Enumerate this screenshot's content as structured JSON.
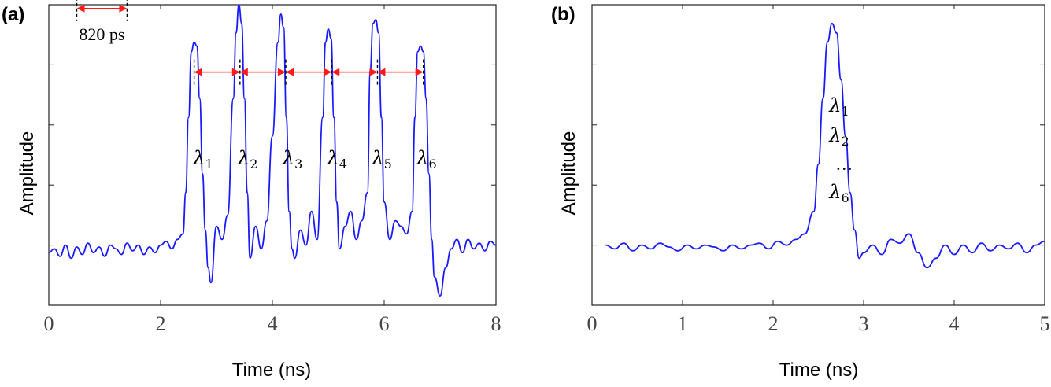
{
  "chart_data": [
    {
      "panel": "(a)",
      "type": "line",
      "xlabel": "Time (ns)",
      "ylabel": "Amplitude",
      "xlim": [
        0,
        8
      ],
      "xticks": [
        "0",
        "2",
        "4",
        "6",
        "8"
      ],
      "ylim": [
        -0.3,
        1.3
      ],
      "series": [
        {
          "color": "#1a1aff",
          "x": [
            0,
            0.1,
            0.2,
            0.3,
            0.4,
            0.5,
            0.6,
            0.7,
            0.8,
            0.9,
            1.0,
            1.1,
            1.2,
            1.3,
            1.4,
            1.5,
            1.6,
            1.7,
            1.8,
            1.9,
            2.0,
            2.1,
            2.2,
            2.3,
            2.4,
            2.45,
            2.5,
            2.55,
            2.6,
            2.65,
            2.7,
            2.75,
            2.8,
            2.85,
            2.9,
            3.0,
            3.1,
            3.2,
            3.3,
            3.35,
            3.4,
            3.45,
            3.5,
            3.55,
            3.6,
            3.7,
            3.8,
            3.9,
            4.0,
            4.1,
            4.15,
            4.2,
            4.25,
            4.3,
            4.35,
            4.4,
            4.5,
            4.6,
            4.7,
            4.8,
            4.9,
            4.95,
            5.0,
            5.05,
            5.1,
            5.15,
            5.2,
            5.3,
            5.4,
            5.5,
            5.6,
            5.7,
            5.75,
            5.8,
            5.85,
            5.9,
            5.95,
            6.0,
            6.1,
            6.2,
            6.3,
            6.4,
            6.5,
            6.55,
            6.6,
            6.65,
            6.7,
            6.75,
            6.8,
            6.85,
            6.9,
            7.0,
            7.1,
            7.2,
            7.3,
            7.4,
            7.5,
            7.6,
            7.7,
            7.8,
            7.9,
            8.0
          ],
          "y": [
            -0.02,
            0.0,
            -0.04,
            0.02,
            -0.05,
            0.01,
            -0.03,
            0.03,
            -0.02,
            0.01,
            -0.04,
            0.02,
            0.0,
            -0.03,
            0.03,
            -0.01,
            0.02,
            -0.03,
            0.01,
            -0.02,
            0.02,
            0.04,
            0.0,
            0.05,
            0.08,
            0.3,
            0.7,
            1.05,
            1.1,
            1.08,
            0.8,
            0.4,
            0.1,
            -0.1,
            -0.18,
            0.12,
            0.05,
            0.18,
            0.8,
            1.15,
            1.3,
            1.2,
            0.8,
            0.3,
            -0.05,
            0.12,
            0.0,
            0.15,
            0.6,
            1.1,
            1.25,
            1.18,
            0.7,
            0.2,
            0.0,
            -0.05,
            0.1,
            0.02,
            0.2,
            0.05,
            0.7,
            1.1,
            1.17,
            1.12,
            0.7,
            0.25,
            0.0,
            0.12,
            0.2,
            0.05,
            0.15,
            0.3,
            0.95,
            1.2,
            1.22,
            1.15,
            0.7,
            0.25,
            0.05,
            0.15,
            0.12,
            0.08,
            0.2,
            0.7,
            1.05,
            1.08,
            1.05,
            0.8,
            0.4,
            0.05,
            -0.15,
            -0.25,
            -0.1,
            0.0,
            0.05,
            -0.02,
            0.05,
            0.0,
            0.03,
            -0.01,
            0.04,
            0.02
          ]
        }
      ],
      "annotations": {
        "pulse_labels": [
          {
            "base": "λ",
            "sub": "1",
            "x": 2.75
          },
          {
            "base": "λ",
            "sub": "2",
            "x": 3.55
          },
          {
            "base": "λ",
            "sub": "3",
            "x": 4.35
          },
          {
            "base": "λ",
            "sub": "4",
            "x": 5.15
          },
          {
            "base": "λ",
            "sub": "5",
            "x": 5.95
          },
          {
            "base": "λ",
            "sub": "6",
            "x": 6.75
          }
        ],
        "label_y": 0.45,
        "spacing_text": "820 ps",
        "spacing_y": 1.0,
        "spacing_peaks_x": [
          2.6,
          3.42,
          4.24,
          5.06,
          5.88,
          6.7
        ],
        "legend_arrow_x": [
          0.5,
          1.4
        ],
        "legend_arrow_y": 1.28
      }
    },
    {
      "panel": "(b)",
      "type": "line",
      "xlabel": "Time (ns)",
      "ylabel": "Amplitude",
      "xlim": [
        0,
        5
      ],
      "xticks": [
        "0",
        "1",
        "2",
        "3",
        "4",
        "5"
      ],
      "ylim": [
        -0.3,
        1.3
      ],
      "series": [
        {
          "color": "#1a1aff",
          "x": [
            0.15,
            0.25,
            0.35,
            0.45,
            0.55,
            0.65,
            0.75,
            0.85,
            0.95,
            1.05,
            1.15,
            1.25,
            1.35,
            1.45,
            1.55,
            1.65,
            1.75,
            1.85,
            1.95,
            2.05,
            2.15,
            2.25,
            2.35,
            2.45,
            2.5,
            2.55,
            2.6,
            2.65,
            2.7,
            2.75,
            2.8,
            2.85,
            2.9,
            2.95,
            3.0,
            3.1,
            3.2,
            3.3,
            3.4,
            3.5,
            3.6,
            3.7,
            3.8,
            3.9,
            4.0,
            4.1,
            4.2,
            4.3,
            4.4,
            4.5,
            4.6,
            4.7,
            4.8,
            4.9,
            5.0
          ],
          "y": [
            0.02,
            0.0,
            0.03,
            -0.01,
            0.02,
            0.0,
            0.03,
            0.01,
            -0.01,
            0.02,
            0.0,
            0.02,
            0.01,
            -0.01,
            0.02,
            0.0,
            0.02,
            0.03,
            0.0,
            0.04,
            0.02,
            0.05,
            0.08,
            0.2,
            0.45,
            0.8,
            1.1,
            1.2,
            1.15,
            0.9,
            0.6,
            0.3,
            0.1,
            -0.05,
            -0.02,
            0.02,
            -0.03,
            0.05,
            0.03,
            0.08,
            -0.02,
            -0.1,
            -0.05,
            0.02,
            -0.03,
            0.02,
            -0.02,
            0.03,
            -0.01,
            0.02,
            0.0,
            0.03,
            -0.02,
            0.02,
            0.04
          ]
        }
      ],
      "annotations": {
        "stack_labels": [
          {
            "base": "λ",
            "sub": "1"
          },
          {
            "base": "λ",
            "sub": "2"
          },
          {
            "base": "…",
            "sub": ""
          },
          {
            "base": "λ",
            "sub": "6"
          }
        ]
      }
    }
  ]
}
